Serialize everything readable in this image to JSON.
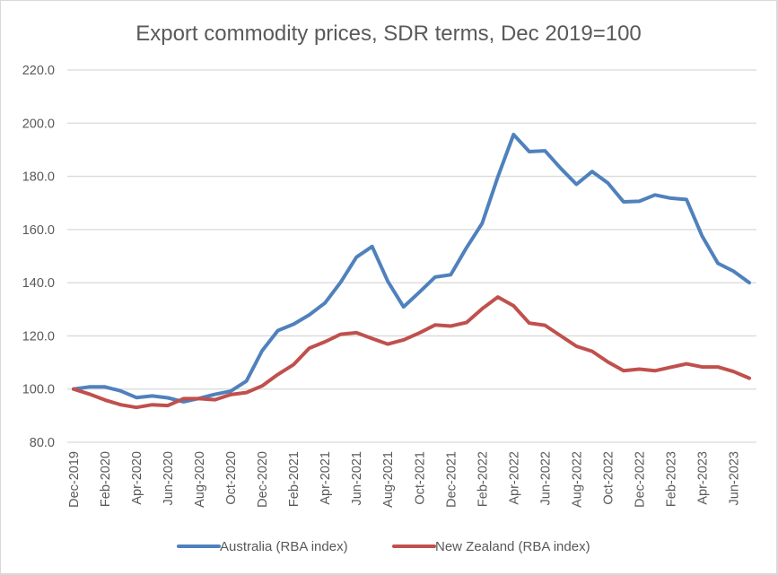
{
  "chart_data": {
    "type": "line",
    "title": "Export commodity prices, SDR terms, Dec 2019=100",
    "xlabel": "",
    "ylabel": "",
    "ylim": [
      80,
      220
    ],
    "yticks": [
      "80.0",
      "100.0",
      "120.0",
      "140.0",
      "160.0",
      "180.0",
      "200.0",
      "220.0"
    ],
    "ytick_values": [
      80,
      100,
      120,
      140,
      160,
      180,
      200,
      220
    ],
    "grid": true,
    "legend_position": "bottom",
    "x": [
      "Dec-2019",
      "Jan-2020",
      "Feb-2020",
      "Mar-2020",
      "Apr-2020",
      "May-2020",
      "Jun-2020",
      "Jul-2020",
      "Aug-2020",
      "Sep-2020",
      "Oct-2020",
      "Nov-2020",
      "Dec-2020",
      "Jan-2021",
      "Feb-2021",
      "Mar-2021",
      "Apr-2021",
      "May-2021",
      "Jun-2021",
      "Jul-2021",
      "Aug-2021",
      "Sep-2021",
      "Oct-2021",
      "Nov-2021",
      "Dec-2021",
      "Jan-2022",
      "Feb-2022",
      "Mar-2022",
      "Apr-2022",
      "May-2022",
      "Jun-2022",
      "Jul-2022",
      "Aug-2022",
      "Sep-2022",
      "Oct-2022",
      "Nov-2022",
      "Dec-2022",
      "Jan-2023",
      "Feb-2023",
      "Mar-2023",
      "Apr-2023",
      "May-2023",
      "Jun-2023",
      "Jul-2023"
    ],
    "xtick_labels": [
      "Dec-2019",
      "Feb-2020",
      "Apr-2020",
      "Jun-2020",
      "Aug-2020",
      "Oct-2020",
      "Dec-2020",
      "Feb-2021",
      "Apr-2021",
      "Jun-2021",
      "Aug-2021",
      "Oct-2021",
      "Dec-2021",
      "Feb-2022",
      "Apr-2022",
      "Jun-2022",
      "Aug-2022",
      "Oct-2022",
      "Dec-2022",
      "Feb-2023",
      "Apr-2023",
      "Jun-2023"
    ],
    "series": [
      {
        "name": "Australia (RBA index)",
        "color": "#4f81bd",
        "values": [
          100,
          100.8,
          100.8,
          99.3,
          96.8,
          97.4,
          96.7,
          95.2,
          96.5,
          98,
          99.2,
          103,
          114.4,
          122,
          124.4,
          127.9,
          132.4,
          140.2,
          149.6,
          153.6,
          140.5,
          130.9,
          136.4,
          142.1,
          143,
          153.1,
          162.3,
          179.8,
          195.7,
          189.3,
          189.6,
          183,
          177,
          181.8,
          177.5,
          170.4,
          170.6,
          173,
          171.8,
          171.3,
          157.5,
          147.3,
          144.3,
          140
        ]
      },
      {
        "name": "New Zealand (RBA index)",
        "color": "#c0504d",
        "values": [
          100,
          98.1,
          95.9,
          94.1,
          93.1,
          94.1,
          93.8,
          96.4,
          96.4,
          96,
          97.9,
          98.7,
          101.2,
          105.5,
          109.2,
          115.4,
          117.8,
          120.6,
          121.2,
          119,
          116.9,
          118.5,
          121.1,
          124.1,
          123.7,
          125,
          130.2,
          134.6,
          131.3,
          124.8,
          124,
          120,
          116.1,
          114.2,
          110.2,
          106.9,
          107.5,
          106.9,
          108.2,
          109.5,
          108.3,
          108.3,
          106.6,
          104.1
        ]
      }
    ]
  },
  "colors": {
    "gridline": "#d9d9d9",
    "text": "#595959"
  }
}
